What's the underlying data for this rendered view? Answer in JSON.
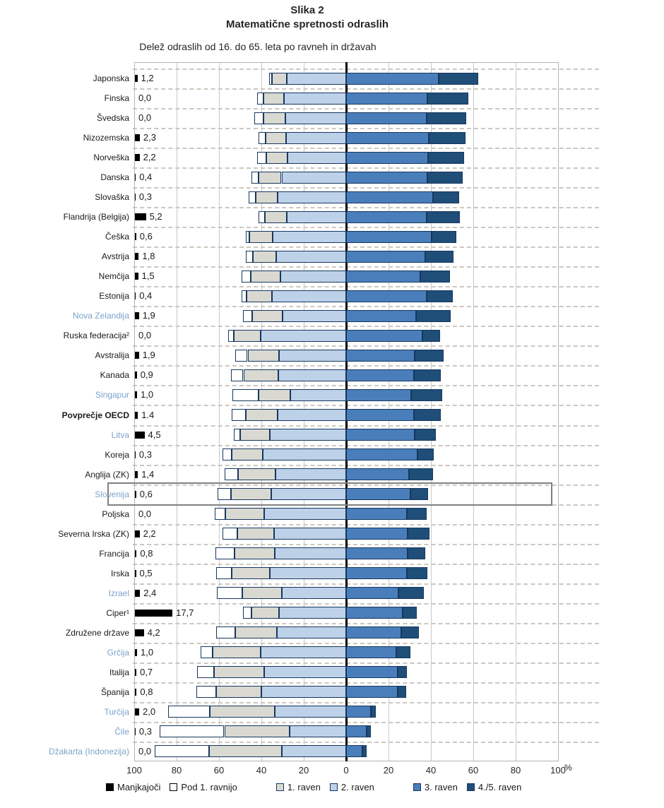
{
  "title": {
    "figure_number": "Slika 2",
    "figure_title": "Matematične spretnosti odraslih",
    "subtitle": "Delež odraslih od 16. do 65. leta po ravneh in državah"
  },
  "colors": {
    "missing": "#000000",
    "below_1": "#ffffff",
    "level_1": "#d9d9d2",
    "level_2": "#bdd1e8",
    "level_3": "#4a7ebb",
    "level_45": "#1f4e79",
    "segment_border": "#17375d",
    "blue_country_label": "#7ba3cc",
    "highlight_border": "#808080"
  },
  "axis": {
    "ticks": [
      "100",
      "80",
      "60",
      "40",
      "20",
      "0",
      "20",
      "40",
      "60",
      "80",
      "100"
    ],
    "unit_label": "%"
  },
  "legend": [
    {
      "label": "Manjkajoči",
      "color": "#000000",
      "border": false,
      "gap_before": false
    },
    {
      "label": "Pod 1. ravnijo",
      "color": "#ffffff",
      "border": true,
      "gap_before": false
    },
    {
      "label": "1. raven",
      "color": "#d9d9d2",
      "border": true,
      "gap_before": true
    },
    {
      "label": "2.  raven",
      "color": "#bdd1e8",
      "border": true,
      "gap_before": false
    },
    {
      "label": "3.  raven",
      "color": "#4a7ebb",
      "border": true,
      "gap_before": true
    },
    {
      "label": "4./5.  raven",
      "color": "#1f4e79",
      "border": true,
      "gap_before": false
    }
  ],
  "chart_data": {
    "type": "bar",
    "variant": "horizontal-diverging-stacked",
    "anchor": "boundary between 2. raven and 3. raven placed at 0",
    "axis_range_each_side": 100,
    "series_order": [
      "missing",
      "below_1",
      "level_1",
      "level_2",
      "level_3",
      "level_45"
    ],
    "left_of_zero": [
      "below_1",
      "level_1",
      "level_2"
    ],
    "right_of_zero": [
      "level_3",
      "level_45"
    ],
    "countries": [
      {
        "name": "Japonska",
        "blue": false,
        "bold": false,
        "highlight": false,
        "missing_label": "1,2",
        "missing": 1.2,
        "below_1": 1.2,
        "level_1": 7.0,
        "level_2": 28.1,
        "level_3": 43.7,
        "level_45": 18.8
      },
      {
        "name": "Finska",
        "blue": false,
        "bold": false,
        "highlight": false,
        "missing_label": "0,0",
        "missing": 0.0,
        "below_1": 3.1,
        "level_1": 9.7,
        "level_2": 29.3,
        "level_3": 38.4,
        "level_45": 19.4
      },
      {
        "name": "Švedska",
        "blue": false,
        "bold": false,
        "highlight": false,
        "missing_label": "0,0",
        "missing": 0.0,
        "below_1": 4.4,
        "level_1": 10.3,
        "level_2": 28.7,
        "level_3": 38.0,
        "level_45": 18.6
      },
      {
        "name": "Nizozemska",
        "blue": false,
        "bold": false,
        "highlight": false,
        "missing_label": "2,3",
        "missing": 2.3,
        "below_1": 3.5,
        "level_1": 9.8,
        "level_2": 28.2,
        "level_3": 39.0,
        "level_45": 17.2
      },
      {
        "name": "Norveška",
        "blue": false,
        "bold": false,
        "highlight": false,
        "missing_label": "2,2",
        "missing": 2.2,
        "below_1": 4.3,
        "level_1": 10.2,
        "level_2": 27.6,
        "level_3": 38.7,
        "level_45": 17.0
      },
      {
        "name": "Danska",
        "blue": false,
        "bold": false,
        "highlight": false,
        "missing_label": "0,4",
        "missing": 0.4,
        "below_1": 3.4,
        "level_1": 10.8,
        "level_2": 30.5,
        "level_3": 38.2,
        "level_45": 16.7
      },
      {
        "name": "Slovaška",
        "blue": false,
        "bold": false,
        "highlight": false,
        "missing_label": "0,3",
        "missing": 0.3,
        "below_1": 3.5,
        "level_1": 10.3,
        "level_2": 32.3,
        "level_3": 41.1,
        "level_45": 12.4
      },
      {
        "name": "Flandrija (Belgija)",
        "blue": false,
        "bold": false,
        "highlight": false,
        "missing_label": "5,2",
        "missing": 5.2,
        "below_1": 3.0,
        "level_1": 10.3,
        "level_2": 27.9,
        "level_3": 37.9,
        "level_45": 15.7
      },
      {
        "name": "Češka",
        "blue": false,
        "bold": false,
        "highlight": false,
        "missing_label": "0,6",
        "missing": 0.6,
        "below_1": 1.7,
        "level_1": 11.1,
        "level_2": 34.6,
        "level_3": 40.4,
        "level_45": 11.6
      },
      {
        "name": "Avstrija",
        "blue": false,
        "bold": false,
        "highlight": false,
        "missing_label": "1,8",
        "missing": 1.8,
        "below_1": 3.4,
        "level_1": 11.0,
        "level_2": 33.1,
        "level_3": 37.2,
        "level_45": 13.5
      },
      {
        "name": "Nemčija",
        "blue": false,
        "bold": false,
        "highlight": false,
        "missing_label": "1,5",
        "missing": 1.5,
        "below_1": 4.5,
        "level_1": 13.9,
        "level_2": 31.0,
        "level_3": 34.9,
        "level_45": 14.2
      },
      {
        "name": "Estonija",
        "blue": false,
        "bold": false,
        "highlight": false,
        "missing_label": "0,4",
        "missing": 0.4,
        "below_1": 2.4,
        "level_1": 11.9,
        "level_2": 35.1,
        "level_3": 38.1,
        "level_45": 12.1
      },
      {
        "name": "Nova Zelandija",
        "blue": true,
        "bold": false,
        "highlight": false,
        "missing_label": "1,9",
        "missing": 1.9,
        "below_1": 4.4,
        "level_1": 14.4,
        "level_2": 30.0,
        "level_3": 33.0,
        "level_45": 16.3
      },
      {
        "name": "Ruska federacija²",
        "blue": false,
        "bold": false,
        "highlight": false,
        "missing_label": "0,0",
        "missing": 0.0,
        "below_1": 2.7,
        "level_1": 12.9,
        "level_2": 40.2,
        "level_3": 35.9,
        "level_45": 8.3
      },
      {
        "name": "Avstralija",
        "blue": false,
        "bold": false,
        "highlight": false,
        "missing_label": "1,9",
        "missing": 1.9,
        "below_1": 5.7,
        "level_1": 14.8,
        "level_2": 31.7,
        "level_3": 32.4,
        "level_45": 13.5
      },
      {
        "name": "Kanada",
        "blue": false,
        "bold": false,
        "highlight": false,
        "missing_label": "0,9",
        "missing": 0.9,
        "below_1": 5.9,
        "level_1": 16.4,
        "level_2": 32.1,
        "level_3": 32.0,
        "level_45": 12.7
      },
      {
        "name": "Singapur",
        "blue": true,
        "bold": false,
        "highlight": false,
        "missing_label": "1,0",
        "missing": 1.0,
        "below_1": 12.5,
        "level_1": 14.8,
        "level_2": 26.4,
        "level_3": 30.7,
        "level_45": 14.6
      },
      {
        "name": "Povprečje OECD",
        "blue": false,
        "bold": true,
        "highlight": false,
        "missing_label": "1.4",
        "missing": 1.4,
        "below_1": 6.7,
        "level_1": 15.2,
        "level_2": 32.2,
        "level_3": 32.0,
        "level_45": 12.5
      },
      {
        "name": "Litva",
        "blue": true,
        "bold": false,
        "highlight": false,
        "missing_label": "4,5",
        "missing": 4.5,
        "below_1": 3.0,
        "level_1": 14.0,
        "level_2": 36.0,
        "level_3": 32.3,
        "level_45": 10.2
      },
      {
        "name": "Koreja",
        "blue": false,
        "bold": false,
        "highlight": false,
        "missing_label": "0,3",
        "missing": 0.3,
        "below_1": 4.2,
        "level_1": 14.7,
        "level_2": 39.4,
        "level_3": 33.5,
        "level_45": 7.9
      },
      {
        "name": "Anglija (ZK)",
        "blue": false,
        "bold": false,
        "highlight": false,
        "missing_label": "1,4",
        "missing": 1.4,
        "below_1": 6.5,
        "level_1": 17.7,
        "level_2": 33.3,
        "level_3": 29.7,
        "level_45": 11.4
      },
      {
        "name": "Slovenija",
        "blue": true,
        "bold": false,
        "highlight": true,
        "missing_label": "0,6",
        "missing": 0.6,
        "below_1": 6.3,
        "level_1": 19.2,
        "level_2": 35.2,
        "level_3": 30.2,
        "level_45": 8.5
      },
      {
        "name": "Poljska",
        "blue": false,
        "bold": false,
        "highlight": false,
        "missing_label": "0,0",
        "missing": 0.0,
        "below_1": 4.8,
        "level_1": 18.5,
        "level_2": 38.6,
        "level_3": 28.8,
        "level_45": 9.3
      },
      {
        "name": "Severna Irska (ZK)",
        "blue": false,
        "bold": false,
        "highlight": false,
        "missing_label": "2,2",
        "missing": 2.2,
        "below_1": 7.0,
        "level_1": 17.5,
        "level_2": 33.9,
        "level_3": 28.9,
        "level_45": 10.5
      },
      {
        "name": "Francija",
        "blue": false,
        "bold": false,
        "highlight": false,
        "missing_label": "0,8",
        "missing": 0.8,
        "below_1": 9.1,
        "level_1": 18.9,
        "level_2": 33.8,
        "level_3": 28.9,
        "level_45": 8.5
      },
      {
        "name": "Irska",
        "blue": false,
        "bold": false,
        "highlight": false,
        "missing_label": "0,5",
        "missing": 0.5,
        "below_1": 7.1,
        "level_1": 18.1,
        "level_2": 36.0,
        "level_3": 28.8,
        "level_45": 9.5
      },
      {
        "name": "Izrael",
        "blue": true,
        "bold": false,
        "highlight": false,
        "missing_label": "2,4",
        "missing": 2.4,
        "below_1": 12.0,
        "level_1": 18.5,
        "level_2": 30.5,
        "level_3": 24.8,
        "level_45": 11.8
      },
      {
        "name": "Ciper¹",
        "blue": false,
        "bold": false,
        "highlight": false,
        "missing_label": "17,7",
        "missing": 17.7,
        "below_1": 4.2,
        "level_1": 13.0,
        "level_2": 31.6,
        "level_3": 26.7,
        "level_45": 6.8
      },
      {
        "name": "Združene države",
        "blue": false,
        "bold": false,
        "highlight": false,
        "missing_label": "4,2",
        "missing": 4.2,
        "below_1": 9.1,
        "level_1": 19.6,
        "level_2": 32.7,
        "level_3": 25.9,
        "level_45": 8.5
      },
      {
        "name": "Grčija",
        "blue": true,
        "bold": false,
        "highlight": false,
        "missing_label": "1,0",
        "missing": 1.0,
        "below_1": 5.9,
        "level_1": 22.6,
        "level_2": 40.3,
        "level_3": 23.8,
        "level_45": 6.4
      },
      {
        "name": "Italija",
        "blue": false,
        "bold": false,
        "highlight": false,
        "missing_label": "0,7",
        "missing": 0.7,
        "below_1": 8.0,
        "level_1": 23.7,
        "level_2": 38.8,
        "level_3": 24.3,
        "level_45": 4.5
      },
      {
        "name": "Španija",
        "blue": false,
        "bold": false,
        "highlight": false,
        "missing_label": "0,8",
        "missing": 0.8,
        "below_1": 9.5,
        "level_1": 21.1,
        "level_2": 40.1,
        "level_3": 24.4,
        "level_45": 4.1
      },
      {
        "name": "Turčija",
        "blue": true,
        "bold": false,
        "highlight": false,
        "missing_label": "2,0",
        "missing": 2.0,
        "below_1": 19.8,
        "level_1": 30.5,
        "level_2": 33.8,
        "level_3": 11.5,
        "level_45": 2.4
      },
      {
        "name": "Čile",
        "blue": true,
        "bold": false,
        "highlight": false,
        "missing_label": "0,3",
        "missing": 0.3,
        "below_1": 30.6,
        "level_1": 30.7,
        "level_2": 26.8,
        "level_3": 9.5,
        "level_45": 2.1
      },
      {
        "name": "Džakarta (Indonezija)",
        "blue": true,
        "bold": false,
        "highlight": false,
        "missing_label": "0,0",
        "missing": 0.0,
        "below_1": 25.7,
        "level_1": 34.2,
        "level_2": 30.4,
        "level_3": 7.6,
        "level_45": 2.1
      }
    ]
  }
}
